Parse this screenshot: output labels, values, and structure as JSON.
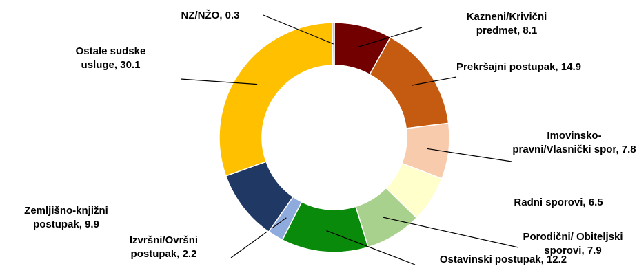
{
  "chart_data": {
    "type": "donut",
    "categories": [
      "Kazneni/Krivični predmet",
      "Prekršajni postupak",
      "Imovinsko-pravni/Vlasnički spor",
      "Radni sporovi",
      "Porodični/ Obiteljski sporovi",
      "Ostavinski postupak",
      "Izvršni/Ovršni postupak",
      "Zemljišno-knjižni postupak",
      "Ostale sudske usluge",
      "NZ/NŽO"
    ],
    "values": [
      8.1,
      14.9,
      7.8,
      6.5,
      7.9,
      12.2,
      2.2,
      9.9,
      30.1,
      0.3
    ],
    "colors": [
      "#730000",
      "#c55a11",
      "#f8cbad",
      "#ffffcc",
      "#a9d18e",
      "#0a8a0a",
      "#8faadc",
      "#1f3864",
      "#ffc000",
      "#f4b6a0"
    ]
  }
}
